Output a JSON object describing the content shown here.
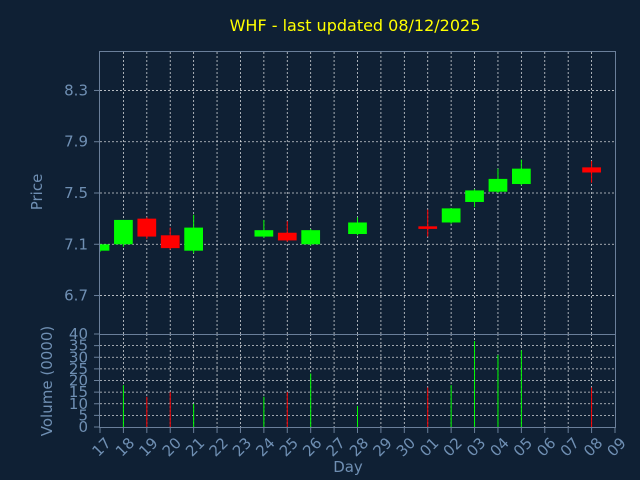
{
  "chart_data": {
    "type": "candlestick",
    "title": "WHF - last updated 08/12/2025",
    "xlabel": "Day",
    "price_panel": {
      "ylabel": "Price",
      "ylim": [
        6.4,
        8.6
      ],
      "yticks": [
        "6.7",
        "7.1",
        "7.5",
        "7.9",
        "8.3"
      ],
      "grid": true
    },
    "volume_panel": {
      "ylabel": "Volume (0000)",
      "ylim": [
        0,
        40
      ],
      "yticks": [
        "0",
        "5",
        "10",
        "15",
        "20",
        "25",
        "30",
        "35",
        "40"
      ],
      "grid": true
    },
    "x_ticks": [
      "17",
      "18",
      "19",
      "20",
      "21",
      "22",
      "23",
      "24",
      "25",
      "26",
      "27",
      "28",
      "29",
      "30",
      "01",
      "02",
      "03",
      "04",
      "05",
      "06",
      "07",
      "08",
      "09"
    ],
    "candles": [
      {
        "day": "17",
        "open": 7.05,
        "close": 7.1,
        "high": 7.1,
        "low": 7.04,
        "volume": 0
      },
      {
        "day": "18",
        "open": 7.1,
        "close": 7.29,
        "high": 7.29,
        "low": 7.08,
        "volume": 18
      },
      {
        "day": "19",
        "open": 7.3,
        "close": 7.16,
        "high": 7.31,
        "low": 7.14,
        "volume": 13
      },
      {
        "day": "20",
        "open": 7.17,
        "close": 7.07,
        "high": 7.23,
        "low": 7.06,
        "volume": 15
      },
      {
        "day": "21",
        "open": 7.05,
        "close": 7.23,
        "high": 7.33,
        "low": 7.03,
        "volume": 10
      },
      {
        "day": "24",
        "open": 7.16,
        "close": 7.21,
        "high": 7.29,
        "low": 7.15,
        "volume": 13
      },
      {
        "day": "25",
        "open": 7.19,
        "close": 7.13,
        "high": 7.28,
        "low": 7.12,
        "volume": 15
      },
      {
        "day": "26",
        "open": 7.1,
        "close": 7.21,
        "high": 7.22,
        "low": 7.09,
        "volume": 23
      },
      {
        "day": "28",
        "open": 7.18,
        "close": 7.27,
        "high": 7.31,
        "low": 7.17,
        "volume": 9
      },
      {
        "day": "01",
        "open": 7.24,
        "close": 7.22,
        "high": 7.37,
        "low": 7.16,
        "volume": 17
      },
      {
        "day": "02",
        "open": 7.27,
        "close": 7.38,
        "high": 7.38,
        "low": 7.26,
        "volume": 18
      },
      {
        "day": "03",
        "open": 7.43,
        "close": 7.52,
        "high": 7.53,
        "low": 7.39,
        "volume": 37
      },
      {
        "day": "04",
        "open": 7.51,
        "close": 7.61,
        "high": 7.69,
        "low": 7.5,
        "volume": 31
      },
      {
        "day": "05",
        "open": 7.57,
        "close": 7.69,
        "high": 7.76,
        "low": 7.56,
        "volume": 33
      },
      {
        "day": "08",
        "open": 7.7,
        "close": 7.66,
        "high": 7.75,
        "low": 7.58,
        "volume": 17
      }
    ]
  },
  "colors": {
    "background": "#0f2034",
    "up": "#00ff00",
    "down": "#ff0000",
    "title": "#ffff00",
    "axis_text": "#6f8fb3",
    "frame": "#6a7f9a",
    "grid": "#ffffff"
  }
}
